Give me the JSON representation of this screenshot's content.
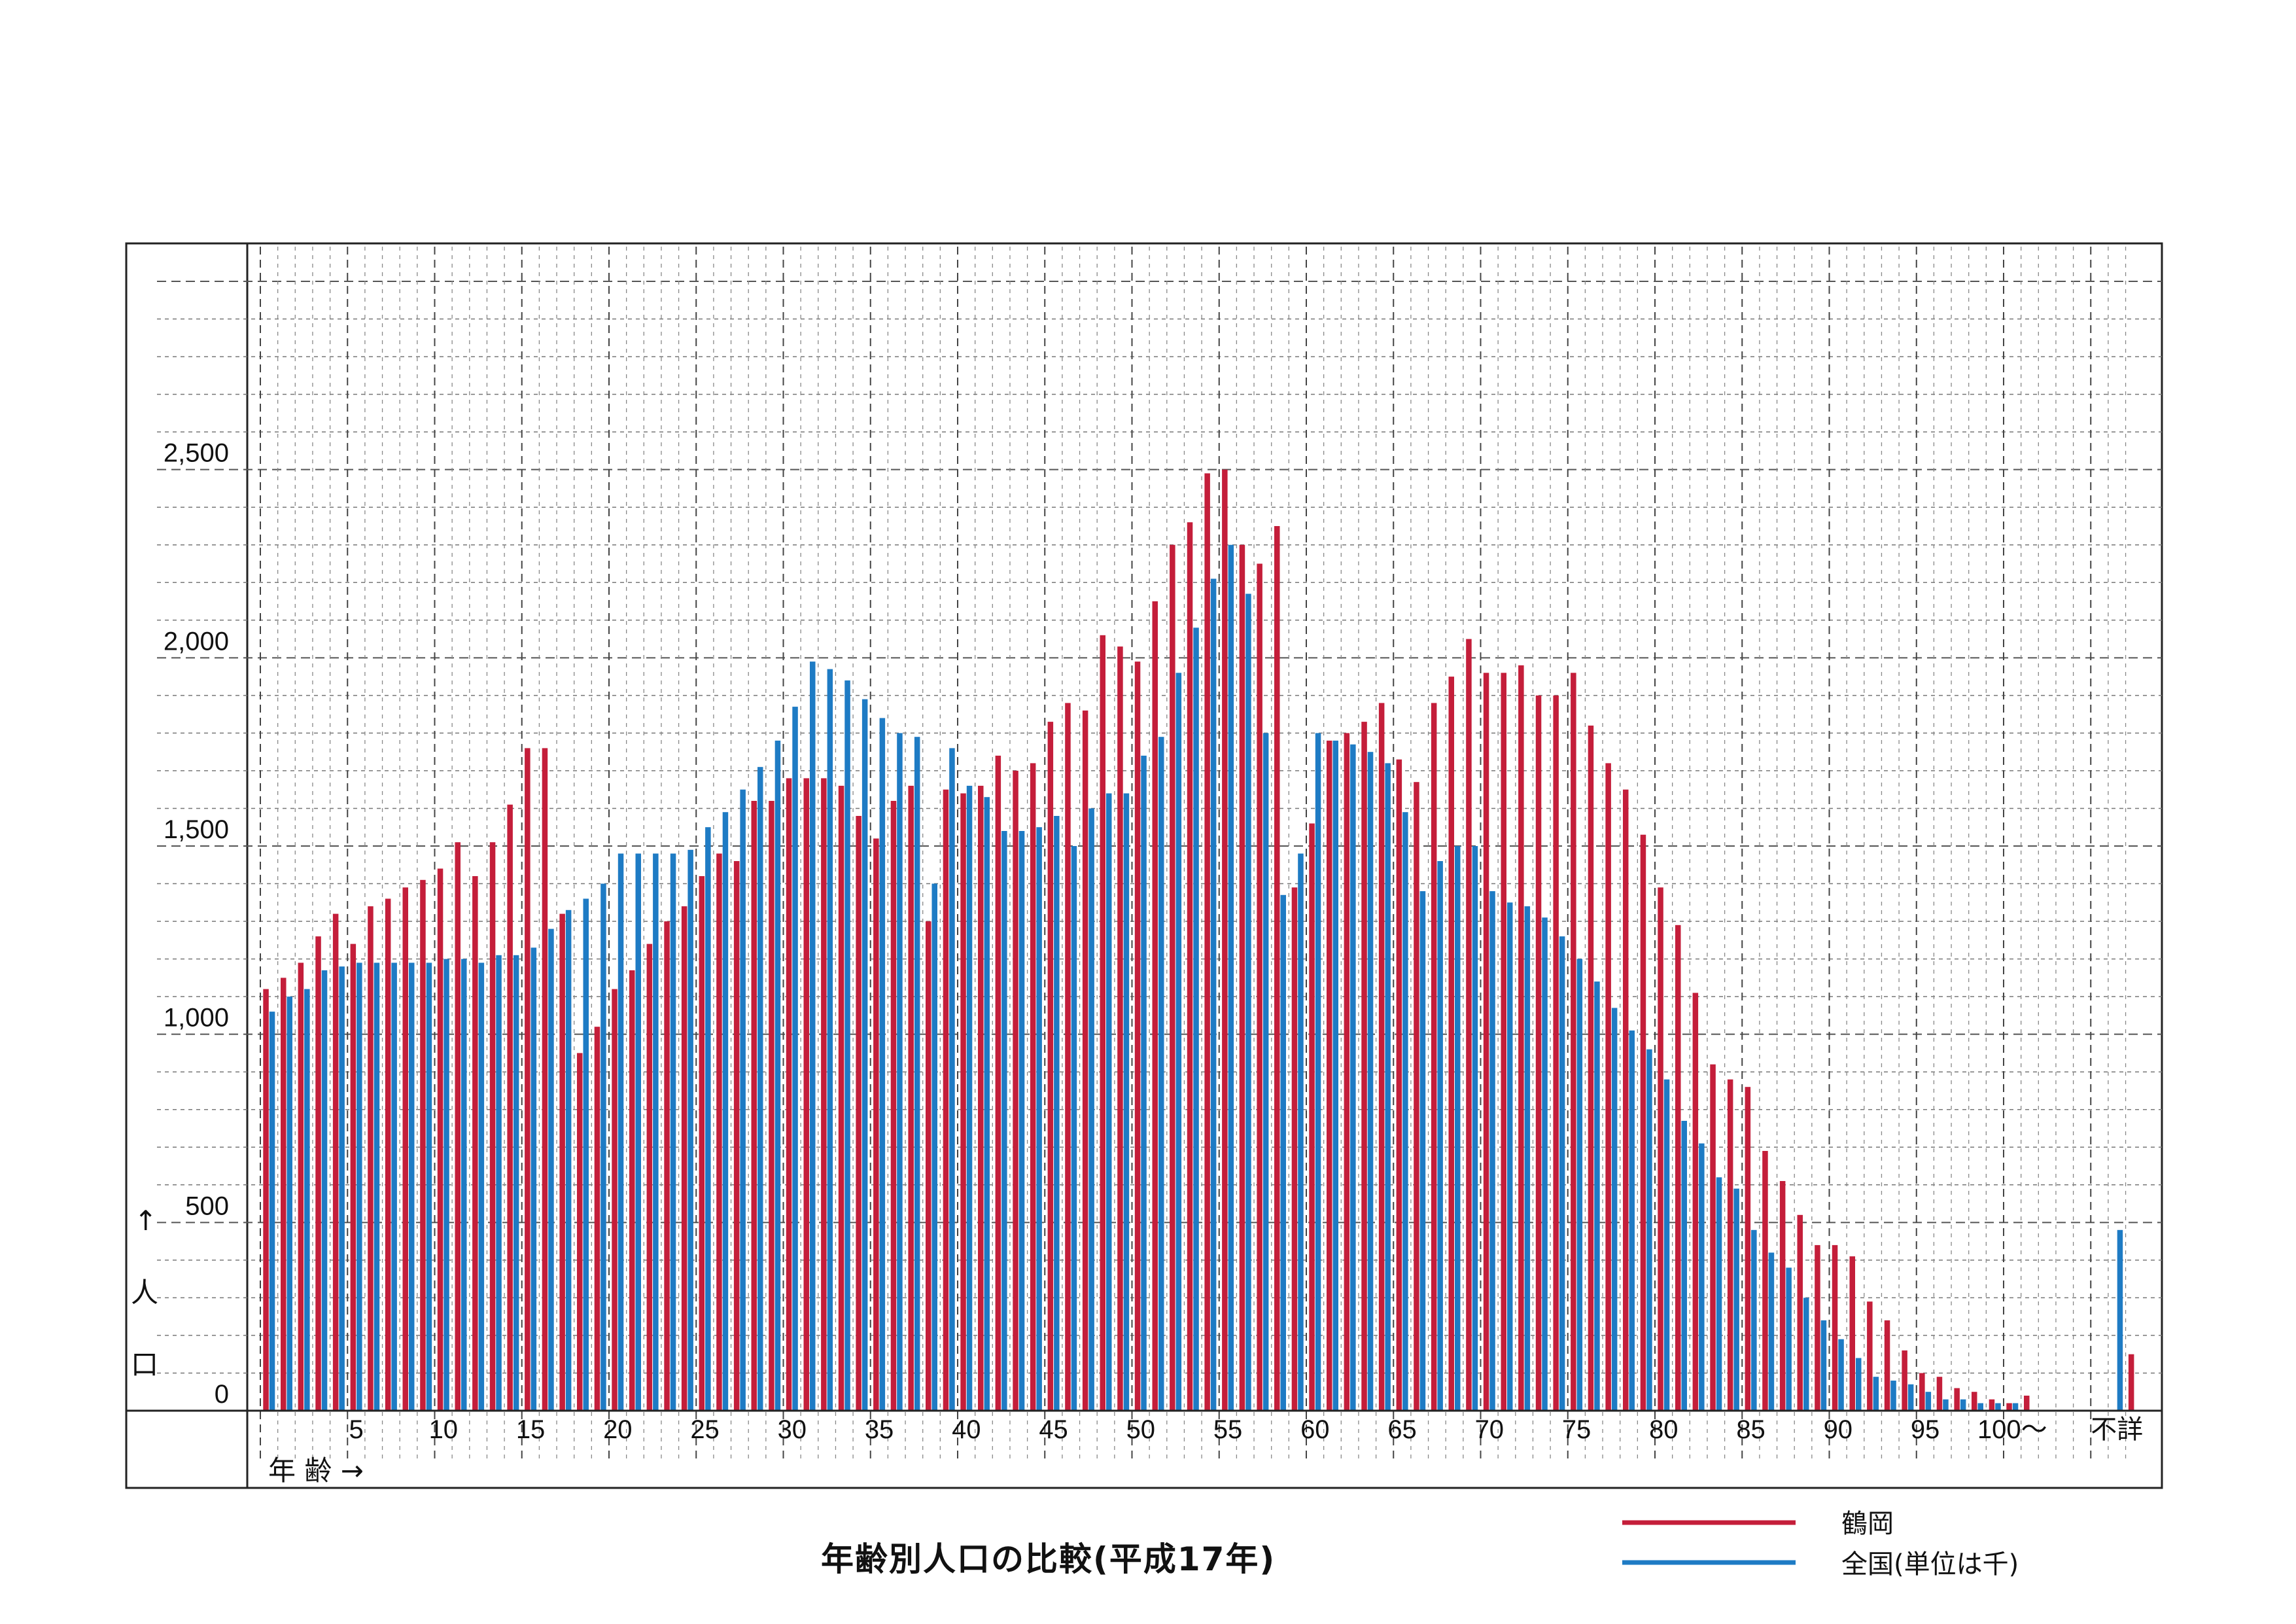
{
  "chart_data": {
    "type": "bar",
    "title": "年齢別人口の比較(平成17年)",
    "y_axis_arrow_label": [
      "↑",
      "人",
      "口"
    ],
    "x_axis_label": "年 齢 →",
    "ylim": [
      0,
      3000
    ],
    "y_ticks": [
      {
        "value": 0,
        "label": "0"
      },
      {
        "value": 500,
        "label": "500"
      },
      {
        "value": 1000,
        "label": "1,000"
      },
      {
        "value": 1500,
        "label": "1,500"
      },
      {
        "value": 2000,
        "label": "2,000"
      },
      {
        "value": 2500,
        "label": "2,500"
      }
    ],
    "x_tick_labels": [
      {
        "index": 5,
        "label": "5"
      },
      {
        "index": 10,
        "label": "10"
      },
      {
        "index": 15,
        "label": "15"
      },
      {
        "index": 20,
        "label": "20"
      },
      {
        "index": 25,
        "label": "25"
      },
      {
        "index": 30,
        "label": "30"
      },
      {
        "index": 35,
        "label": "35"
      },
      {
        "index": 40,
        "label": "40"
      },
      {
        "index": 45,
        "label": "45"
      },
      {
        "index": 50,
        "label": "50"
      },
      {
        "index": 55,
        "label": "55"
      },
      {
        "index": 60,
        "label": "60"
      },
      {
        "index": 65,
        "label": "65"
      },
      {
        "index": 70,
        "label": "70"
      },
      {
        "index": 75,
        "label": "75"
      },
      {
        "index": 80,
        "label": "80"
      },
      {
        "index": 85,
        "label": "85"
      },
      {
        "index": 90,
        "label": "90"
      },
      {
        "index": 95,
        "label": "95"
      },
      {
        "index": 100,
        "label": "100〜"
      },
      {
        "index": 106,
        "label": "不詳"
      }
    ],
    "grid": true,
    "legend_position": "bottom-right",
    "series": [
      {
        "name": "鶴岡",
        "color": "#c41e3a",
        "values": [
          1120,
          1150,
          1190,
          1260,
          1320,
          1240,
          1340,
          1360,
          1390,
          1410,
          1440,
          1510,
          1420,
          1510,
          1610,
          1760,
          1760,
          1320,
          950,
          1020,
          1120,
          1170,
          1240,
          1300,
          1340,
          1420,
          1480,
          1460,
          1620,
          1620,
          1680,
          1680,
          1680,
          1660,
          1580,
          1520,
          1620,
          1660,
          1300,
          1650,
          1640,
          1660,
          1740,
          1700,
          1720,
          1830,
          1880,
          1860,
          2060,
          2030,
          1990,
          2150,
          2300,
          2360,
          2490,
          2500,
          2300,
          2250,
          2350,
          1390,
          1560,
          1780,
          1800,
          1830,
          1880,
          1730,
          1670,
          1880,
          1950,
          2050,
          1960,
          1960,
          1980,
          1900,
          1900,
          1960,
          1820,
          1720,
          1650,
          1530,
          1390,
          1290,
          1110,
          920,
          880,
          860,
          690,
          610,
          520,
          440,
          440,
          410,
          290,
          240,
          160,
          100,
          90,
          60,
          50,
          30,
          20,
          40,
          0,
          0,
          0,
          0,
          0,
          150
        ]
      },
      {
        "name": "全国(単位は千)",
        "color": "#1e7bc4",
        "values": [
          1060,
          1100,
          1120,
          1170,
          1180,
          1190,
          1190,
          1190,
          1190,
          1190,
          1200,
          1200,
          1190,
          1210,
          1210,
          1230,
          1280,
          1330,
          1360,
          1400,
          1480,
          1480,
          1480,
          1480,
          1490,
          1550,
          1590,
          1650,
          1710,
          1780,
          1870,
          1990,
          1970,
          1940,
          1890,
          1840,
          1800,
          1790,
          1400,
          1760,
          1660,
          1630,
          1540,
          1540,
          1550,
          1580,
          1500,
          1600,
          1640,
          1640,
          1740,
          1790,
          1960,
          2080,
          2210,
          2300,
          2170,
          1800,
          1370,
          1480,
          1800,
          1780,
          1770,
          1750,
          1720,
          1590,
          1380,
          1460,
          1500,
          1500,
          1380,
          1350,
          1340,
          1310,
          1260,
          1200,
          1140,
          1070,
          1010,
          960,
          880,
          770,
          710,
          620,
          590,
          480,
          420,
          380,
          300,
          240,
          190,
          140,
          90,
          80,
          70,
          50,
          30,
          30,
          20,
          20,
          20,
          0,
          0,
          0,
          0,
          0,
          480
        ]
      }
    ]
  },
  "legend": [
    {
      "label": "鶴岡",
      "color": "#c41e3a"
    },
    {
      "label": "全国(単位は千)",
      "color": "#1e7bc4"
    }
  ]
}
